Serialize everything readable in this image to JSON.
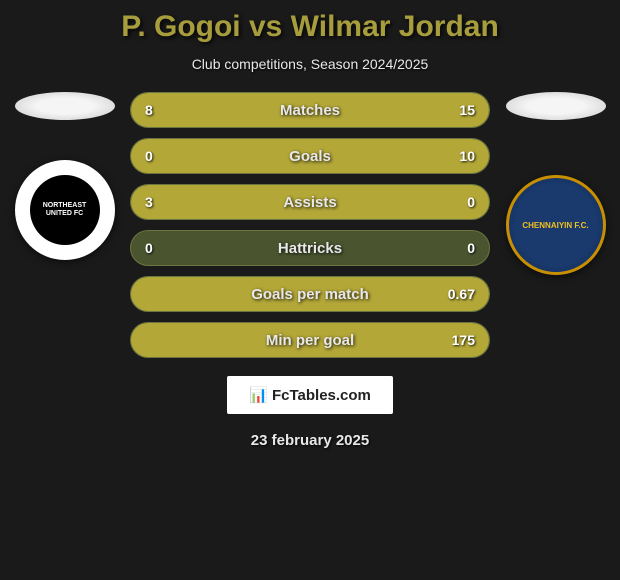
{
  "title": "P. Gogoi vs Wilmar Jordan",
  "subtitle": "Club competitions, Season 2024/2025",
  "colors": {
    "background": "#1a1a1a",
    "accent": "#a89d3c",
    "bar_bg": "#4a5530",
    "bar_fill": "#b3a738",
    "text": "#e8e8e8"
  },
  "left_player": {
    "club_text": "NORTHEAST UNITED FC"
  },
  "right_player": {
    "club_text": "CHENNAIYIN F.C."
  },
  "stats": [
    {
      "label": "Matches",
      "left_val": "8",
      "right_val": "15",
      "left_pct": 34.8,
      "right_pct": 65.2
    },
    {
      "label": "Goals",
      "left_val": "0",
      "right_val": "10",
      "left_pct": 0,
      "right_pct": 100
    },
    {
      "label": "Assists",
      "left_val": "3",
      "right_val": "0",
      "left_pct": 100,
      "right_pct": 0
    },
    {
      "label": "Hattricks",
      "left_val": "0",
      "right_val": "0",
      "left_pct": 0,
      "right_pct": 0
    },
    {
      "label": "Goals per match",
      "left_val": "",
      "right_val": "0.67",
      "left_pct": 0,
      "right_pct": 100
    },
    {
      "label": "Min per goal",
      "left_val": "",
      "right_val": "175",
      "left_pct": 0,
      "right_pct": 100
    }
  ],
  "footer": {
    "brand": "FcTables.com",
    "date": "23 february 2025"
  }
}
